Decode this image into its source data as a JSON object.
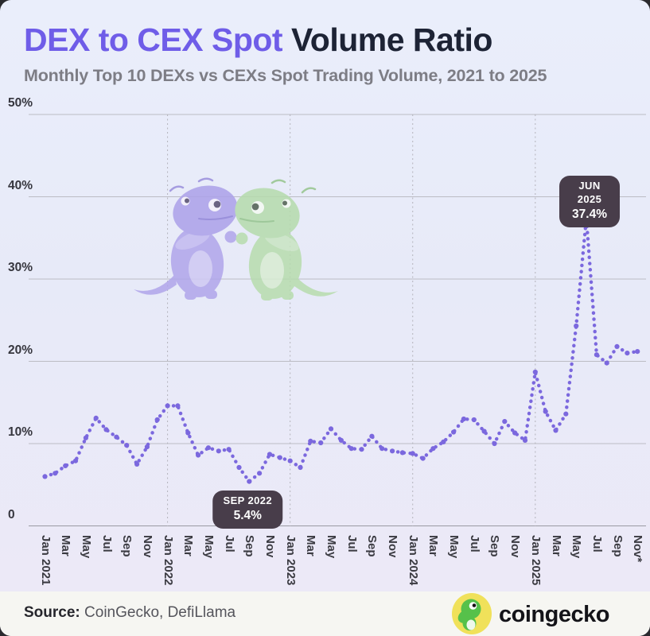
{
  "header": {
    "title_accent": "DEX to CEX Spot",
    "title_rest": " Volume Ratio",
    "subtitle": "Monthly Top 10 DEXs vs CEXs Spot Trading Volume, 2021 to 2025"
  },
  "chart_data": {
    "type": "line",
    "series_name": "DEX to CEX Spot Volume Ratio",
    "unit": "%",
    "x_frequency": "monthly",
    "x_range": [
      "Jan 2021",
      "Nov 2025"
    ],
    "x_tick_labels": [
      "Jan 2021",
      "Mar",
      "May",
      "Jul",
      "Sep",
      "Nov",
      "Jan 2022",
      "Mar",
      "May",
      "Jul",
      "Sep",
      "Nov",
      "Jan 2023",
      "Mar",
      "May",
      "Jul",
      "Sep",
      "Nov",
      "Jan 2024",
      "Mar",
      "May",
      "Jul",
      "Sep",
      "Nov",
      "Jan 2025",
      "Mar",
      "May",
      "Jul",
      "Sep",
      "Nov*"
    ],
    "values": [
      6.0,
      6.4,
      7.3,
      7.9,
      10.7,
      13.1,
      11.7,
      10.8,
      9.8,
      7.5,
      9.6,
      12.9,
      14.6,
      14.6,
      11.3,
      8.6,
      9.5,
      9.1,
      9.3,
      7.1,
      5.4,
      6.4,
      8.7,
      8.3,
      7.9,
      7.1,
      10.3,
      10.1,
      11.8,
      10.4,
      9.4,
      9.3,
      10.9,
      9.4,
      9.1,
      8.9,
      8.8,
      8.2,
      9.4,
      10.2,
      11.4,
      13.0,
      12.9,
      11.5,
      10.0,
      12.7,
      11.3,
      10.4,
      18.7,
      13.9,
      11.6,
      13.6,
      24.3,
      37.4,
      20.8,
      19.8,
      21.8,
      21.0,
      21.2
    ],
    "ylim": [
      0,
      50
    ],
    "y_axis": {
      "ticks": [
        "50%",
        "40%",
        "30%",
        "20%",
        "10%",
        "0"
      ],
      "values": [
        50,
        40,
        30,
        20,
        10,
        0
      ]
    },
    "year_gridline_month_indexes": [
      12,
      24,
      36,
      48
    ],
    "line_color": "#7b68de",
    "annotations": [
      {
        "label": "SEP 2022",
        "value": "5.4%",
        "month_index": 20,
        "side": "below"
      },
      {
        "label": "JUN 2025",
        "value": "37.4%",
        "month_index": 53,
        "side": "above"
      }
    ]
  },
  "footer": {
    "source_label": "Source:",
    "source_text": " CoinGecko, DefiLlama",
    "logo_text": "coingecko"
  },
  "colors": {
    "title_accent": "#6f5de8",
    "title_rest": "#1d2335",
    "line": "#7b68de",
    "annotation_bg": "#483d4a",
    "background_top": "#eaeefb",
    "background_bottom": "#ece9f7",
    "footer_bg": "#f6f6f2"
  }
}
